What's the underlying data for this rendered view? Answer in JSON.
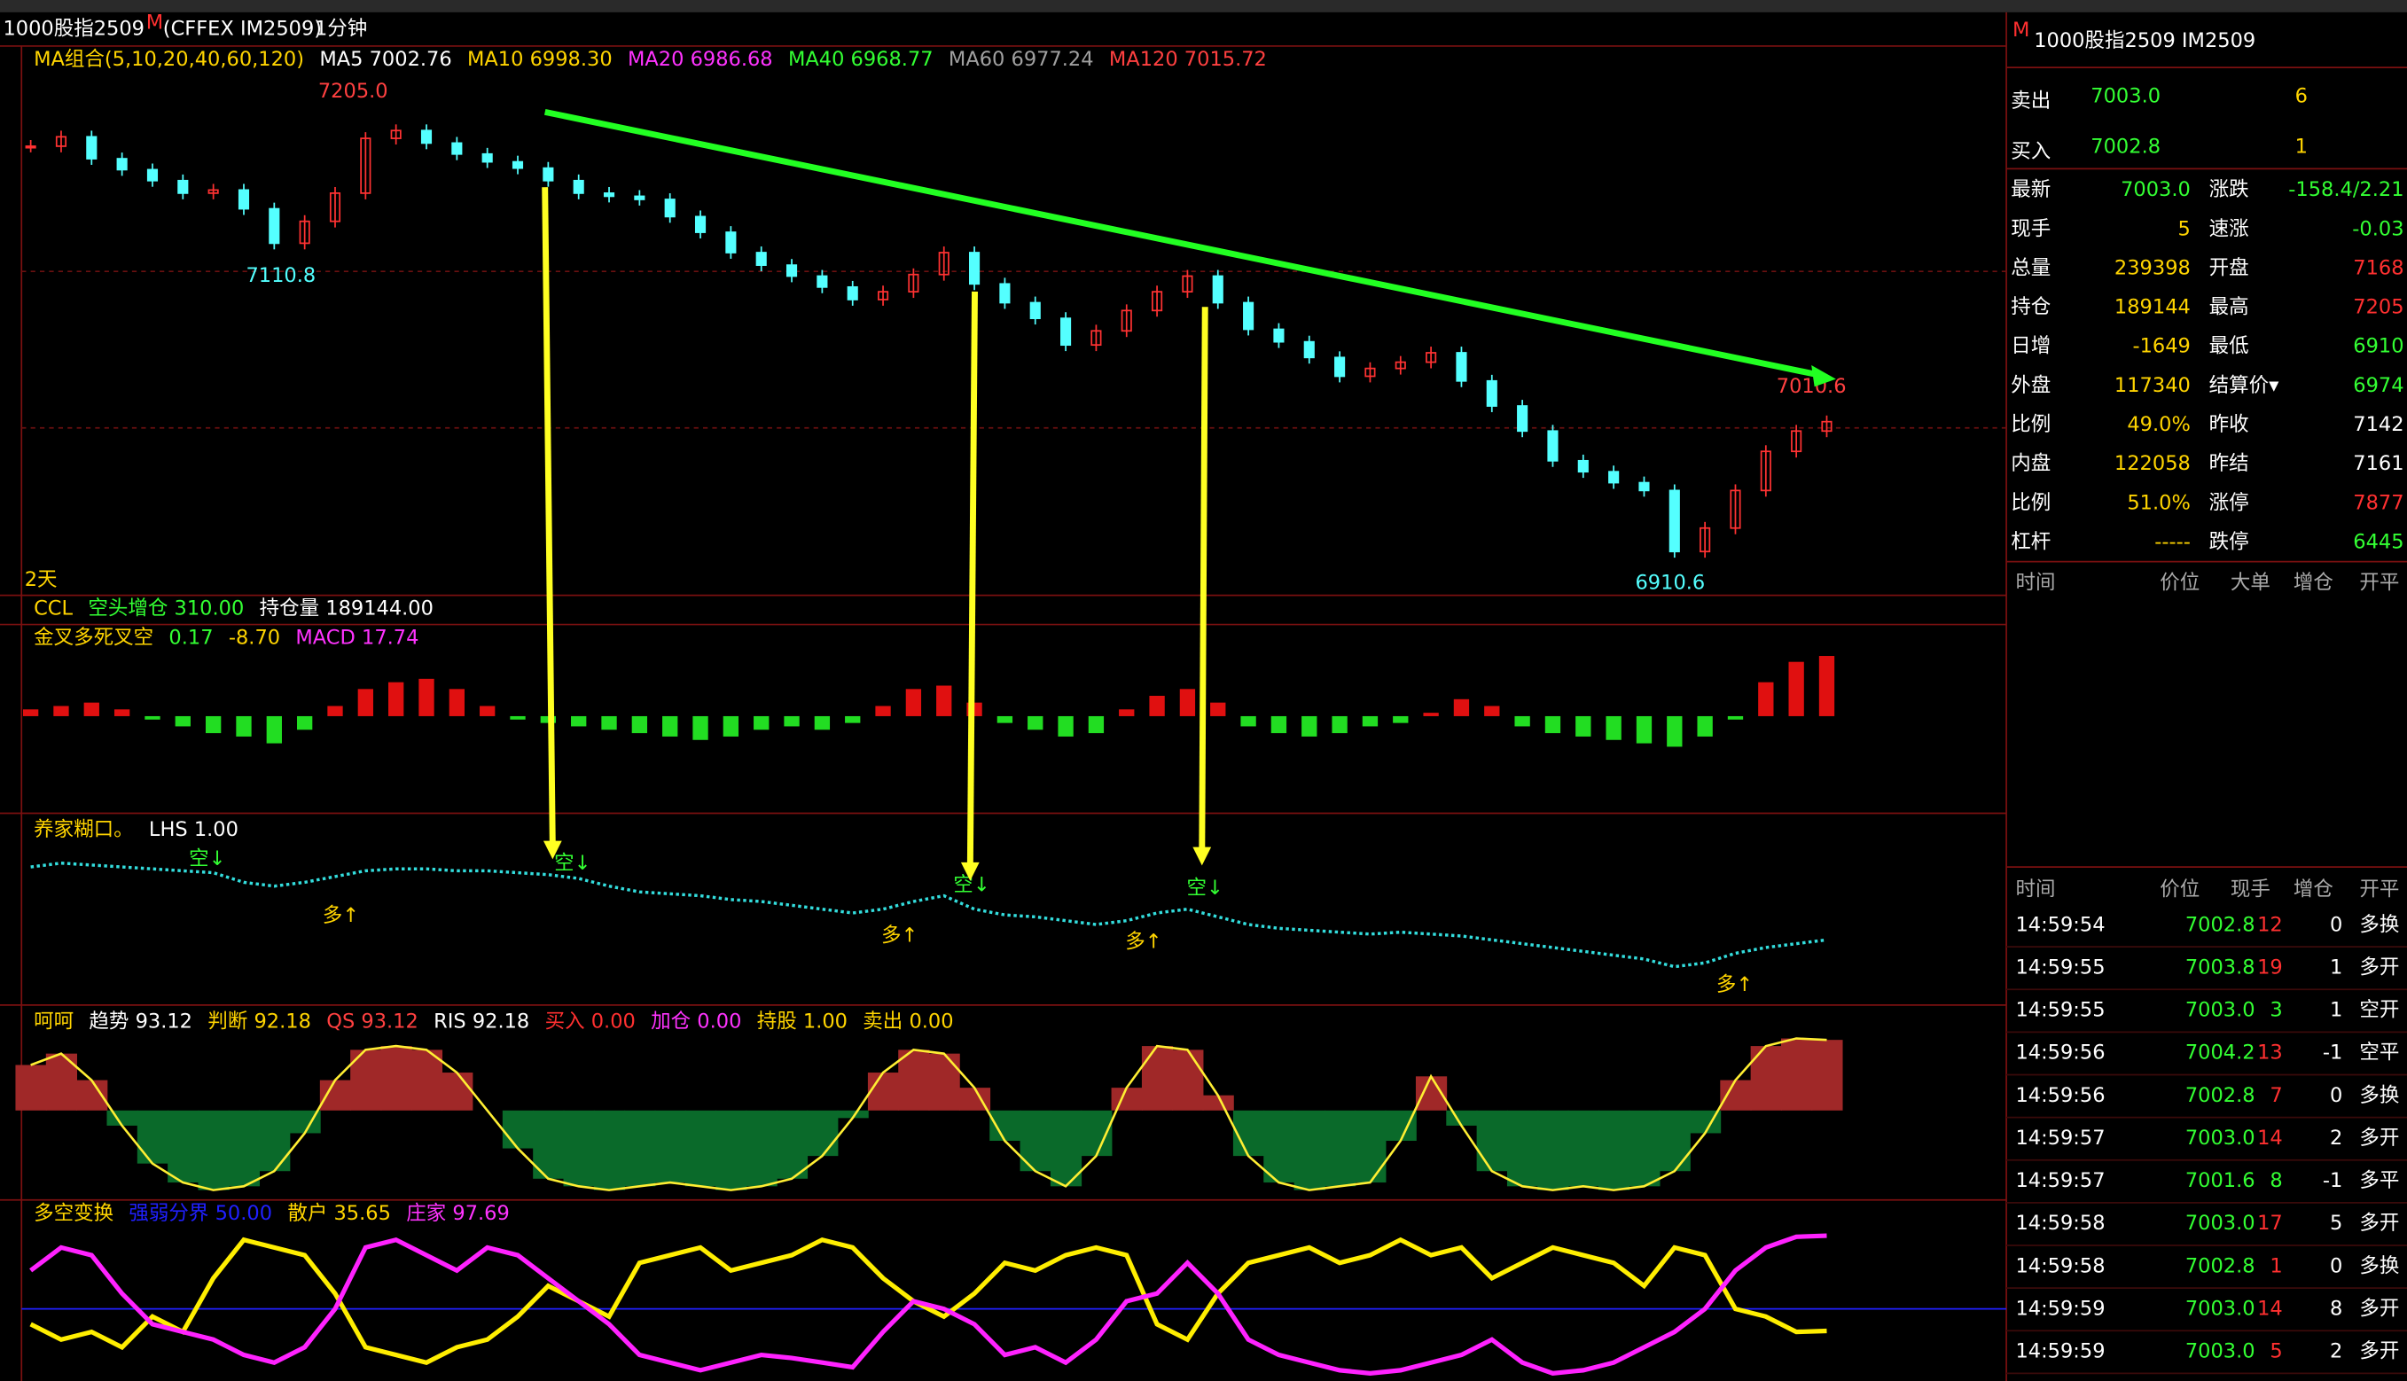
{
  "header": {
    "title": "1000股指2509",
    "badge": "M",
    "code": "(CFFEX IM2509)",
    "period": "1分钟"
  },
  "panels": [
    {
      "type": "candles",
      "legend": [
        {
          "text": "MA组合(5,10,20,40,60,120)",
          "color": "#ffd400"
        },
        {
          "text": "MA5 7002.76",
          "color": "#ffffff"
        },
        {
          "text": "MA10 6998.30",
          "color": "#ffd400"
        },
        {
          "text": "MA20 6986.68",
          "color": "#ff33ff"
        },
        {
          "text": "MA40 6968.77",
          "color": "#33ff33"
        },
        {
          "text": "MA60 6977.24",
          "color": "#a0a0a0"
        },
        {
          "text": "MA120 7015.72",
          "color": "#ff4040"
        }
      ],
      "period_label": "2天",
      "closes": [
        7180,
        7186,
        7172,
        7165,
        7158,
        7150,
        7152,
        7140,
        7118,
        7132,
        7150,
        7185,
        7190,
        7182,
        7175,
        7170,
        7166,
        7158,
        7150,
        7148,
        7146,
        7135,
        7125,
        7112,
        7104,
        7097,
        7090,
        7082,
        7087,
        7098,
        7112,
        7092,
        7080,
        7070,
        7053,
        7062,
        7075,
        7087,
        7097,
        7080,
        7063,
        7055,
        7045,
        7033,
        7038,
        7042,
        7048,
        7030,
        7014,
        6998,
        6979,
        6972,
        6965,
        6960,
        6921,
        6936,
        6960,
        6985,
        6998,
        7004
      ],
      "ylim": [
        6893,
        7244
      ],
      "yticks": [
        7100,
        7000
      ],
      "up_color": "#ff3232",
      "down_color": "#54ffff",
      "price_labels": [
        {
          "value": 7205.0,
          "label": "7205.0",
          "color": "#ff4040"
        },
        {
          "value": 7110.8,
          "label": "7110.8",
          "color": "#54ffff"
        },
        {
          "value": 6910.6,
          "label": "6910.6",
          "color": "#54ffff"
        },
        {
          "value": 7010.6,
          "label": "7010.6",
          "color": "#ff4040"
        }
      ]
    },
    {
      "type": "histogram",
      "legend": [
        {
          "text": "CCL",
          "color": "#ffd400"
        },
        {
          "text": "空头增仓 310.00",
          "color": "#33ff33"
        },
        {
          "text": "持仓量 189144.00",
          "color": "#ffffff"
        }
      ],
      "legend2": [
        {
          "text": "金叉多死叉空",
          "color": "#ffd400"
        },
        {
          "text": "0.17",
          "color": "#33ff33"
        },
        {
          "text": "-8.70",
          "color": "#ffd400"
        },
        {
          "text": "MACD 17.74",
          "color": "#ff33ff"
        }
      ],
      "values": [
        2,
        3,
        4,
        2,
        -1,
        -3,
        -5,
        -6,
        -8,
        -4,
        3,
        8,
        10,
        11,
        8,
        3,
        -1,
        -2,
        -3,
        -4,
        -5,
        -6,
        -7,
        -6,
        -4,
        -3,
        -4,
        -2,
        3,
        8,
        9,
        4,
        -2,
        -4,
        -6,
        -5,
        2,
        6,
        8,
        4,
        -3,
        -5,
        -6,
        -5,
        -3,
        -2,
        1,
        5,
        3,
        -3,
        -5,
        -6,
        -7,
        -8,
        -9,
        -6,
        -1,
        10,
        16,
        17.74
      ],
      "ylim": [
        -28.6,
        27
      ],
      "up_color": "#e01010",
      "down_color": "#22dd22"
    },
    {
      "type": "dots",
      "legend": [
        {
          "text": "养家糊口。",
          "color": "#ffd400"
        },
        {
          "text": "LHS 1.00",
          "color": "#ffffff"
        }
      ],
      "values": [
        80,
        82,
        81,
        80,
        79,
        78,
        77,
        72,
        70,
        72,
        75,
        78,
        79,
        79,
        78,
        78,
        77,
        76,
        74,
        70,
        67,
        66,
        65,
        63,
        62,
        60,
        58,
        56,
        58,
        62,
        65,
        58,
        55,
        54,
        52,
        50,
        52,
        56,
        58,
        54,
        50,
        48,
        47,
        46,
        45,
        46,
        45,
        44,
        42,
        40,
        38,
        36,
        34,
        32,
        28,
        30,
        35,
        38,
        40,
        42
      ],
      "ylim": [
        0,
        100
      ],
      "color": "#33dddd",
      "annotations": [
        {
          "text": "空↓",
          "color": "#33ff33"
        },
        {
          "text": "空↓",
          "color": "#33ff33"
        },
        {
          "text": "空↓",
          "color": "#33ff33"
        },
        {
          "text": "空↓",
          "color": "#33ff33"
        },
        {
          "text": "多↑",
          "color": "#ffd400"
        },
        {
          "text": "多↑",
          "color": "#ffd400"
        },
        {
          "text": "多↑",
          "color": "#ffd400"
        },
        {
          "text": "多↑",
          "color": "#ffd400"
        }
      ]
    },
    {
      "type": "area",
      "legend": [
        {
          "text": "呵呵",
          "color": "#ffd400"
        },
        {
          "text": "趋势 93.12",
          "color": "#ffffff"
        },
        {
          "text": "判断 92.18",
          "color": "#ffd400"
        },
        {
          "text": "QS 93.12",
          "color": "#ff4040"
        },
        {
          "text": "RIS 92.18",
          "color": "#ffffff"
        },
        {
          "text": "买入 0.00",
          "color": "#ff3030"
        },
        {
          "text": "加仓 0.00",
          "color": "#ff33ff"
        },
        {
          "text": "持股 1.00",
          "color": "#ffd400"
        },
        {
          "text": "卖出 0.00",
          "color": "#ffd400"
        }
      ],
      "values": [
        60,
        75,
        40,
        -20,
        -70,
        -95,
        -105,
        -100,
        -80,
        -30,
        40,
        80,
        85,
        80,
        50,
        0,
        -50,
        -90,
        -100,
        -105,
        -100,
        -95,
        -100,
        -105,
        -100,
        -90,
        -60,
        -10,
        50,
        80,
        75,
        30,
        -40,
        -80,
        -100,
        -60,
        30,
        85,
        80,
        20,
        -60,
        -95,
        -105,
        -100,
        -95,
        -40,
        45,
        -20,
        -80,
        -100,
        -105,
        -100,
        -105,
        -100,
        -80,
        -30,
        40,
        85,
        95,
        93.12
      ],
      "ylim": [
        -118,
        135
      ],
      "up_color": "#a02828",
      "down_color": "#0a6a2a",
      "line_color": "#ffee33"
    },
    {
      "type": "lines",
      "legend": [
        {
          "text": "多空变换",
          "color": "#ffd400"
        },
        {
          "text": "强弱分界 50.00",
          "color": "#2020ff"
        },
        {
          "text": "散户 35.65",
          "color": "#ffd400"
        },
        {
          "text": "庄家 97.69",
          "color": "#ff33ff"
        }
      ],
      "divider": 50,
      "ylim": [
        3,
        119
      ],
      "series": [
        {
          "name": "散户",
          "color": "#ffee00",
          "values": [
            40,
            30,
            35,
            25,
            45,
            35,
            70,
            95,
            90,
            85,
            60,
            25,
            20,
            15,
            25,
            30,
            45,
            65,
            55,
            45,
            80,
            85,
            90,
            75,
            80,
            85,
            95,
            90,
            70,
            55,
            45,
            60,
            80,
            75,
            85,
            90,
            85,
            40,
            30,
            60,
            80,
            85,
            90,
            80,
            85,
            95,
            85,
            90,
            70,
            80,
            90,
            85,
            80,
            65,
            90,
            85,
            50,
            45,
            35,
            35.65
          ]
        },
        {
          "name": "庄家",
          "color": "#ff22ff",
          "values": [
            75,
            90,
            85,
            60,
            40,
            35,
            30,
            20,
            15,
            25,
            50,
            90,
            95,
            85,
            75,
            90,
            85,
            70,
            55,
            40,
            20,
            15,
            10,
            15,
            20,
            18,
            15,
            12,
            35,
            55,
            50,
            40,
            20,
            25,
            15,
            30,
            55,
            60,
            80,
            60,
            30,
            20,
            15,
            10,
            8,
            10,
            15,
            20,
            30,
            15,
            8,
            10,
            15,
            25,
            35,
            50,
            75,
            90,
            97,
            97.69
          ]
        }
      ]
    }
  ],
  "quote": {
    "title": "1000股指2509  IM2509",
    "badge": "M",
    "book": [
      {
        "label": "卖出",
        "price": "7003.0",
        "qty": "6"
      },
      {
        "label": "买入",
        "price": "7002.8",
        "qty": "1"
      }
    ],
    "rows": [
      {
        "label": "最新",
        "value": "7003.0",
        "color": "#33ff33",
        "label2": "涨跌",
        "value2": "-158.4/2.21",
        "color2": "#33ff33"
      },
      {
        "label": "现手",
        "value": "5",
        "color": "#ffd400",
        "label2": "速涨",
        "value2": "-0.03",
        "color2": "#33ff33"
      },
      {
        "label": "总量",
        "value": "239398",
        "color": "#ffd400",
        "label2": "开盘",
        "value2": "7168",
        "color2": "#ff3030"
      },
      {
        "label": "持仓",
        "value": "189144",
        "color": "#ffd400",
        "label2": "最高",
        "value2": "7205",
        "color2": "#ff3030"
      },
      {
        "label": "日增",
        "value": "-1649",
        "color": "#ffd400",
        "label2": "最低",
        "value2": "6910",
        "color2": "#33ff33"
      },
      {
        "label": "外盘",
        "value": "117340",
        "color": "#ffd400",
        "label2": "结算价▾",
        "value2": "6974",
        "color2": "#33ff33"
      },
      {
        "label": "比例",
        "value": "49.0%",
        "color": "#ffd400",
        "label2": "昨收",
        "value2": "7142",
        "color2": "#ffffff"
      },
      {
        "label": "内盘",
        "value": "122058",
        "color": "#ffd400",
        "label2": "昨结",
        "value2": "7161",
        "color2": "#ffffff"
      },
      {
        "label": "比例",
        "value": "51.0%",
        "color": "#ffd400",
        "label2": "涨停",
        "value2": "7877",
        "color2": "#ff3030"
      },
      {
        "label": "杠杆",
        "value": "-----",
        "color": "#ffd400",
        "label2": "跌停",
        "value2": "6445",
        "color2": "#33ff33"
      }
    ],
    "big_header": [
      "时间",
      "价位",
      "大单",
      "增仓",
      "开平"
    ],
    "trade_header": [
      "时间",
      "价位",
      "现手",
      "增仓",
      "开平"
    ],
    "trades": [
      {
        "time": "14:59:54",
        "price": "7002.8",
        "qty": "12",
        "oi": "0",
        "kind": "多换",
        "color": "#ff3030"
      },
      {
        "time": "14:59:55",
        "price": "7003.8",
        "qty": "19",
        "oi": "1",
        "kind": "多开",
        "color": "#ff3030"
      },
      {
        "time": "14:59:55",
        "price": "7003.0",
        "qty": "3",
        "oi": "1",
        "kind": "空开",
        "color": "#33ff33"
      },
      {
        "time": "14:59:56",
        "price": "7004.2",
        "qty": "13",
        "oi": "-1",
        "kind": "空平",
        "color": "#ff3030"
      },
      {
        "time": "14:59:56",
        "price": "7002.8",
        "qty": "7",
        "oi": "0",
        "kind": "多换",
        "color": "#ff3030"
      },
      {
        "time": "14:59:57",
        "price": "7003.0",
        "qty": "14",
        "oi": "2",
        "kind": "多开",
        "color": "#ff3030"
      },
      {
        "time": "14:59:57",
        "price": "7001.6",
        "qty": "8",
        "oi": "-1",
        "kind": "多平",
        "color": "#33ff33"
      },
      {
        "time": "14:59:58",
        "price": "7003.0",
        "qty": "17",
        "oi": "5",
        "kind": "多开",
        "color": "#ff3030"
      },
      {
        "time": "14:59:58",
        "price": "7002.8",
        "qty": "1",
        "oi": "0",
        "kind": "多换",
        "color": "#ff3030"
      },
      {
        "time": "14:59:59",
        "price": "7003.0",
        "qty": "14",
        "oi": "8",
        "kind": "多开",
        "color": "#ff3030"
      },
      {
        "time": "14:59:59",
        "price": "7003.0",
        "qty": "5",
        "oi": "2",
        "kind": "多开",
        "color": "#ff3030"
      }
    ]
  }
}
